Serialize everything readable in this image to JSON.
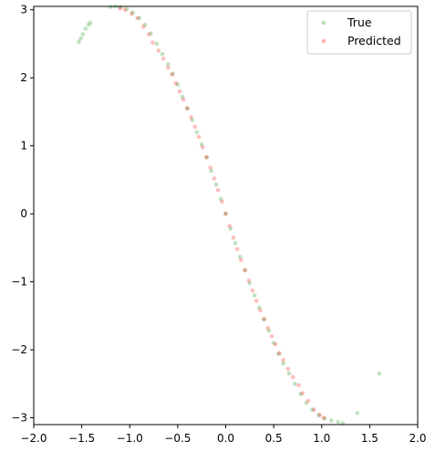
{
  "chart_data": {
    "type": "scatter",
    "xlim": [
      -2.0,
      2.0
    ],
    "ylim": [
      -3.1,
      3.05
    ],
    "xticks": [
      -2.0,
      -1.5,
      -1.0,
      -0.5,
      0.0,
      0.5,
      1.0,
      1.5,
      2.0
    ],
    "xtick_labels": [
      "−2.0",
      "−1.5",
      "−1.0",
      "−0.5",
      "0.0",
      "0.5",
      "1.0",
      "1.5",
      "2.0"
    ],
    "yticks": [
      -3,
      -2,
      -1,
      0,
      1,
      2,
      3
    ],
    "ytick_labels": [
      "−3",
      "−2",
      "−1",
      "0",
      "1",
      "2",
      "3"
    ],
    "grid": false,
    "legend_position": "top-right",
    "series": [
      {
        "name": "True",
        "color": "#2ca02c",
        "alpha": 0.3,
        "points": [
          [
            -1.53,
            2.53
          ],
          [
            -1.51,
            2.58
          ],
          [
            -1.49,
            2.64
          ],
          [
            -1.46,
            2.72
          ],
          [
            -1.43,
            2.78
          ],
          [
            -1.41,
            2.81
          ],
          [
            -1.2,
            3.04
          ],
          [
            -1.15,
            3.05
          ],
          [
            -1.1,
            3.04
          ],
          [
            -1.03,
            3.01
          ],
          [
            -0.97,
            2.96
          ],
          [
            -0.9,
            2.88
          ],
          [
            -0.84,
            2.78
          ],
          [
            -0.78,
            2.65
          ],
          [
            -0.72,
            2.5
          ],
          [
            -0.66,
            2.35
          ],
          [
            -0.6,
            2.2
          ],
          [
            -0.55,
            2.06
          ],
          [
            -0.5,
            1.9
          ],
          [
            -0.45,
            1.72
          ],
          [
            -0.4,
            1.55
          ],
          [
            -0.35,
            1.38
          ],
          [
            -0.3,
            1.2
          ],
          [
            -0.25,
            1.02
          ],
          [
            -0.2,
            0.83
          ],
          [
            -0.15,
            0.63
          ],
          [
            -0.1,
            0.43
          ],
          [
            -0.05,
            0.22
          ],
          [
            0.0,
            0.0
          ],
          [
            0.05,
            -0.22
          ],
          [
            0.1,
            -0.43
          ],
          [
            0.15,
            -0.63
          ],
          [
            0.2,
            -0.83
          ],
          [
            0.25,
            -1.02
          ],
          [
            0.3,
            -1.2
          ],
          [
            0.35,
            -1.38
          ],
          [
            0.4,
            -1.55
          ],
          [
            0.45,
            -1.72
          ],
          [
            0.5,
            -1.9
          ],
          [
            0.55,
            -2.06
          ],
          [
            0.6,
            -2.2
          ],
          [
            0.66,
            -2.35
          ],
          [
            0.72,
            -2.5
          ],
          [
            0.78,
            -2.65
          ],
          [
            0.84,
            -2.78
          ],
          [
            0.9,
            -2.88
          ],
          [
            0.97,
            -2.96
          ],
          [
            1.03,
            -3.01
          ],
          [
            1.1,
            -3.04
          ],
          [
            1.17,
            -3.06
          ],
          [
            1.22,
            -3.08
          ],
          [
            1.37,
            -2.93
          ],
          [
            1.6,
            -2.35
          ]
        ]
      },
      {
        "name": "Predicted",
        "color": "#ff0000",
        "alpha": 0.25,
        "points": [
          [
            -1.1,
            3.02
          ],
          [
            -1.05,
            3.0
          ],
          [
            -0.98,
            2.94
          ],
          [
            -0.92,
            2.88
          ],
          [
            -0.86,
            2.75
          ],
          [
            -0.8,
            2.64
          ],
          [
            -0.76,
            2.52
          ],
          [
            -0.7,
            2.4
          ],
          [
            -0.65,
            2.28
          ],
          [
            -0.6,
            2.15
          ],
          [
            -0.56,
            2.05
          ],
          [
            -0.52,
            1.92
          ],
          [
            -0.48,
            1.8
          ],
          [
            -0.44,
            1.68
          ],
          [
            -0.4,
            1.55
          ],
          [
            -0.36,
            1.42
          ],
          [
            -0.32,
            1.28
          ],
          [
            -0.28,
            1.13
          ],
          [
            -0.24,
            0.98
          ],
          [
            -0.2,
            0.83
          ],
          [
            -0.16,
            0.68
          ],
          [
            -0.12,
            0.52
          ],
          [
            -0.08,
            0.35
          ],
          [
            -0.04,
            0.18
          ],
          [
            0.0,
            0.0
          ],
          [
            0.04,
            -0.18
          ],
          [
            0.08,
            -0.35
          ],
          [
            0.12,
            -0.52
          ],
          [
            0.16,
            -0.68
          ],
          [
            0.2,
            -0.83
          ],
          [
            0.24,
            -0.98
          ],
          [
            0.28,
            -1.13
          ],
          [
            0.32,
            -1.28
          ],
          [
            0.36,
            -1.42
          ],
          [
            0.4,
            -1.55
          ],
          [
            0.44,
            -1.68
          ],
          [
            0.48,
            -1.8
          ],
          [
            0.52,
            -1.92
          ],
          [
            0.56,
            -2.05
          ],
          [
            0.6,
            -2.15
          ],
          [
            0.65,
            -2.28
          ],
          [
            0.7,
            -2.4
          ],
          [
            0.76,
            -2.52
          ],
          [
            0.8,
            -2.64
          ],
          [
            0.86,
            -2.75
          ],
          [
            0.92,
            -2.88
          ],
          [
            0.98,
            -2.96
          ],
          [
            1.02,
            -3.0
          ]
        ]
      }
    ]
  }
}
